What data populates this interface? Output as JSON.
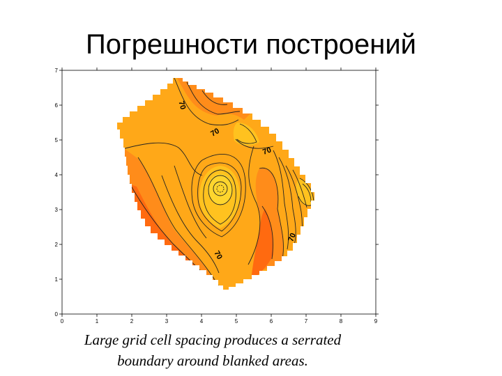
{
  "slide": {
    "title": "Погрешности построений"
  },
  "caption": {
    "line1": "Large grid cell spacing produces a serrated",
    "line2": "boundary around blanked areas."
  },
  "figure": {
    "x_ticks": [
      "0",
      "1",
      "2",
      "3",
      "4",
      "5",
      "6",
      "7",
      "8",
      "9"
    ],
    "y_ticks": [
      "0",
      "1",
      "2",
      "3",
      "4",
      "5",
      "6",
      "7"
    ],
    "contour_label": "70",
    "colors": {
      "deep_orange": "#ff6a10",
      "orange": "#ff8c1a",
      "amber": "#ffa818",
      "light_amber": "#ffc21f",
      "yellow": "#ffd52e",
      "contour": "#222222"
    }
  }
}
